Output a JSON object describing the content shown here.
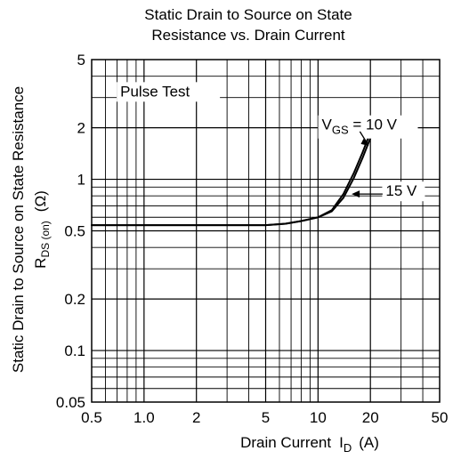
{
  "chart_data": {
    "type": "line",
    "title_lines": [
      "Static Drain to Source on State",
      "Resistance vs. Drain Current"
    ],
    "xlabel": "Drain Current",
    "xlabel_symbol": "I",
    "xlabel_subscript": "D",
    "xlabel_unit": "(A)",
    "ylabel": "Static Drain to Source on State Resistance",
    "ylabel_symbol": "R",
    "ylabel_subscript": "DS (on)",
    "ylabel_unit": "(Ω)",
    "x_scale": "log",
    "y_scale": "log",
    "xlim": [
      0.5,
      50
    ],
    "ylim": [
      0.05,
      5
    ],
    "x_ticks": [
      0.5,
      1.0,
      2,
      5,
      10,
      20,
      50
    ],
    "x_tick_labels": [
      "0.5",
      "1.0",
      "2",
      "5",
      "10",
      "20",
      "50"
    ],
    "y_ticks": [
      5,
      2,
      1,
      0.5,
      0.2,
      0.1,
      0.05
    ],
    "y_tick_labels": [
      "5",
      "2",
      "1",
      "0.5",
      "0.2",
      "0.1",
      "0.05"
    ],
    "grid": true,
    "annotation": "Pulse Test",
    "series": [
      {
        "label_main": "V",
        "label_sub": "GS",
        "label_rest": " = 10 V",
        "x": [
          0.5,
          2,
          5,
          6.5,
          8,
          10,
          12,
          14,
          16,
          18,
          20
        ],
        "y": [
          0.54,
          0.54,
          0.54,
          0.55,
          0.57,
          0.6,
          0.66,
          0.82,
          1.08,
          1.43,
          1.88
        ]
      },
      {
        "label_main": "",
        "label_sub": "",
        "label_rest": "15 V",
        "x": [
          0.5,
          2,
          5,
          6.5,
          8,
          10,
          12,
          14,
          16,
          18,
          20
        ],
        "y": [
          0.54,
          0.54,
          0.54,
          0.55,
          0.57,
          0.6,
          0.65,
          0.78,
          1.01,
          1.33,
          1.74
        ]
      }
    ]
  }
}
